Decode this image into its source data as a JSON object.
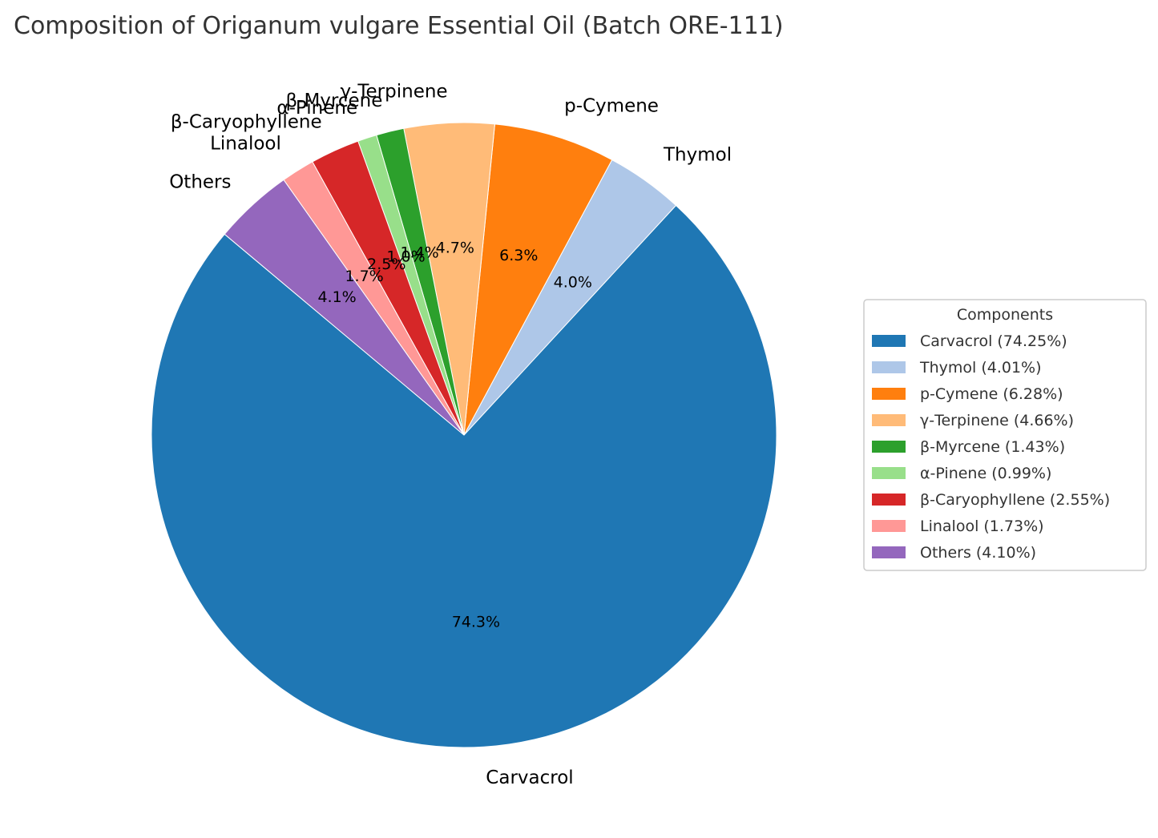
{
  "chart_data": {
    "type": "pie",
    "title": "Composition of Origanum vulgare Essential Oil (Batch ORE-111)",
    "legend_title": "Components",
    "legend_placement": "center-right",
    "start_angle_deg": 140,
    "direction": "counterclockwise",
    "slices": [
      {
        "label": "Carvacrol",
        "value": 74.25,
        "pct_label": "74.3%",
        "legend": "Carvacrol (74.25%)",
        "color": "#1f77b4"
      },
      {
        "label": "Thymol",
        "value": 4.01,
        "pct_label": "4.0%",
        "legend": "Thymol (4.01%)",
        "color": "#aec7e8"
      },
      {
        "label": "p-Cymene",
        "value": 6.28,
        "pct_label": "6.3%",
        "legend": "p-Cymene (6.28%)",
        "color": "#ff7f0e"
      },
      {
        "label": "γ-Terpinene",
        "value": 4.66,
        "pct_label": "4.7%",
        "legend": "γ-Terpinene (4.66%)",
        "color": "#ffbb78"
      },
      {
        "label": "β-Myrcene",
        "value": 1.43,
        "pct_label": "1.4%",
        "legend": "β-Myrcene (1.43%)",
        "color": "#2ca02c"
      },
      {
        "label": "α-Pinene",
        "value": 0.99,
        "pct_label": "1.0%",
        "legend": "α-Pinene (0.99%)",
        "color": "#98df8a"
      },
      {
        "label": "β-Caryophyllene",
        "value": 2.55,
        "pct_label": "2.5%",
        "legend": "β-Caryophyllene (2.55%)",
        "color": "#d62728"
      },
      {
        "label": "Linalool",
        "value": 1.73,
        "pct_label": "1.7%",
        "legend": "Linalool (1.73%)",
        "color": "#ff9896"
      },
      {
        "label": "Others",
        "value": 4.1,
        "pct_label": "4.1%",
        "legend": "Others (4.10%)",
        "color": "#9467bd"
      }
    ]
  }
}
